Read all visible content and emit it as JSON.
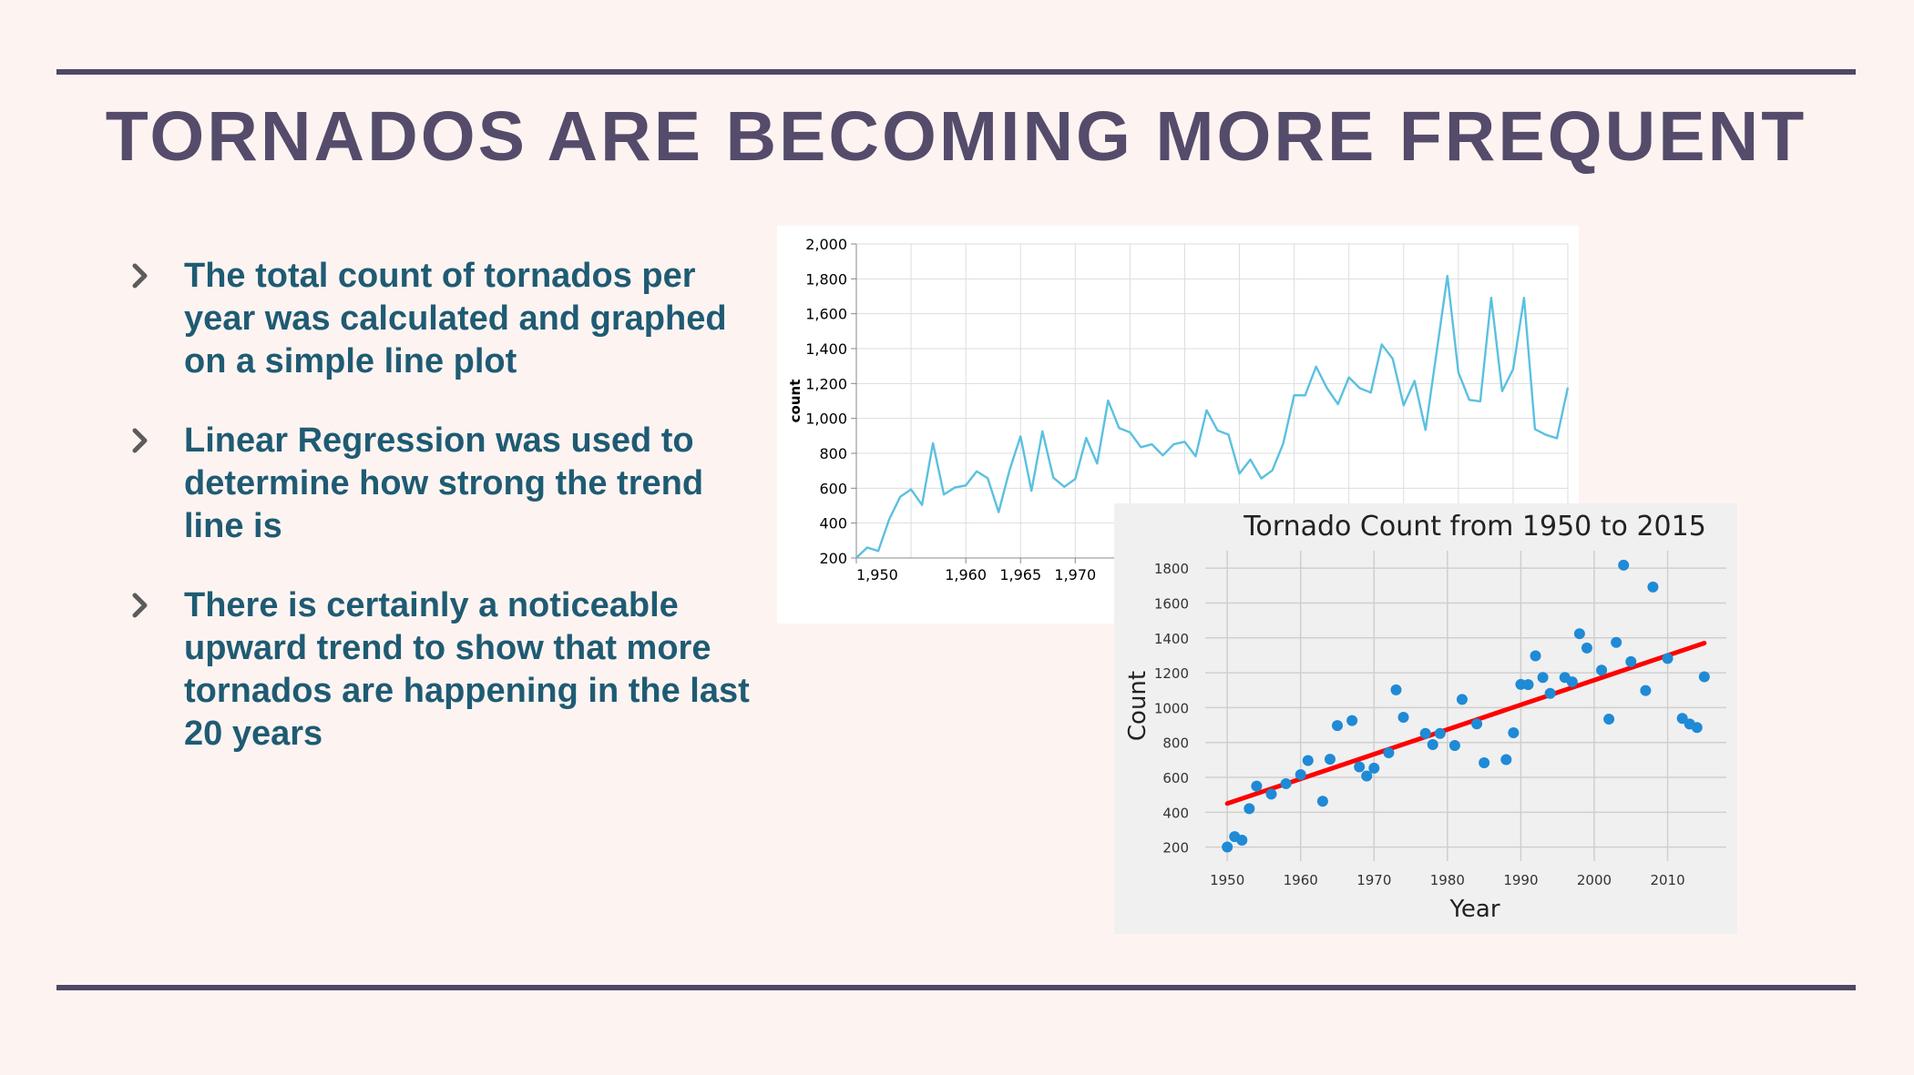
{
  "slide": {
    "title": "TORNADOS ARE BECOMING MORE FREQUENT",
    "accent_color": "#4f4764",
    "text_color": "#1f5b73",
    "bullets": [
      "The total count of tornados per year was calculated and graphed on a simple line plot",
      "Linear Regression was used to determine how strong the trend line is",
      "There is certainly a noticeable upward trend to show that more tornados are happening in the last 20 years"
    ]
  },
  "chart_data": [
    {
      "type": "line",
      "title": "",
      "xlabel": "",
      "ylabel": "count",
      "xlim": [
        1950,
        2015
      ],
      "ylim": [
        200,
        2000
      ],
      "yticks": [
        200,
        400,
        600,
        800,
        1000,
        1200,
        1400,
        1600,
        1800,
        2000
      ],
      "ytick_labels": [
        "200",
        "400",
        "600",
        "800",
        "1,000",
        "1,200",
        "1,400",
        "1,600",
        "1,800",
        "2,000"
      ],
      "xticks": [
        1950,
        1960,
        1965,
        1970
      ],
      "xtick_labels": [
        "1,950",
        "1,960",
        "1,965",
        "1,970"
      ],
      "color": "#5bc0e0",
      "grid": true,
      "series": [
        {
          "x": [
            1950,
            1951,
            1952,
            1953,
            1954,
            1955,
            1956,
            1957,
            1958,
            1959,
            1960,
            1961,
            1962,
            1963,
            1964,
            1965,
            1966,
            1967,
            1968,
            1969,
            1970,
            1971,
            1972,
            1973,
            1974,
            1975,
            1976,
            1977,
            1978,
            1979,
            1980,
            1981,
            1982,
            1983,
            1984,
            1985,
            1986,
            1987,
            1988,
            1989,
            1990,
            1991,
            1992,
            1993,
            1994,
            1995,
            1996,
            1997,
            1998,
            1999,
            2000,
            2001,
            2002,
            2003,
            2004,
            2005,
            2006,
            2007,
            2008,
            2009,
            2010,
            2011,
            2012,
            2013,
            2014,
            2015
          ],
          "values": [
            201,
            260,
            240,
            421,
            550,
            593,
            504,
            858,
            564,
            604,
            616,
            697,
            657,
            463,
            704,
            897,
            585,
            926,
            660,
            608,
            653,
            888,
            741,
            1102,
            945,
            920,
            835,
            852,
            788,
            852,
            866,
            783,
            1047,
            931,
            907,
            684,
            764,
            656,
            702,
            856,
            1133,
            1132,
            1297,
            1173,
            1082,
            1235,
            1173,
            1148,
            1424,
            1342,
            1075,
            1215,
            934,
            1374,
            1817,
            1264,
            1106,
            1098,
            1692,
            1156,
            1282,
            1691,
            938,
            906,
            886,
            1177
          ]
        }
      ]
    },
    {
      "type": "scatter",
      "title": "Tornado Count from 1950 to 2015",
      "xlabel": "Year",
      "ylabel": "Count",
      "xlim": [
        1947,
        2018
      ],
      "ylim": [
        120,
        1900
      ],
      "xticks": [
        1950,
        1960,
        1970,
        1980,
        1990,
        2000,
        2010
      ],
      "yticks": [
        200,
        400,
        600,
        800,
        1000,
        1200,
        1400,
        1600,
        1800
      ],
      "point_color": "#1f8ad6",
      "trend_color": "#ff0000",
      "grid": true,
      "points": {
        "x": [
          1950,
          1951,
          1952,
          1953,
          1954,
          1956,
          1958,
          1960,
          1961,
          1963,
          1964,
          1965,
          1967,
          1968,
          1969,
          1970,
          1972,
          1973,
          1974,
          1977,
          1978,
          1979,
          1981,
          1982,
          1984,
          1985,
          1988,
          1989,
          1990,
          1991,
          1992,
          1993,
          1994,
          1996,
          1997,
          1998,
          1999,
          2001,
          2002,
          2003,
          2004,
          2005,
          2007,
          2008,
          2010,
          2012,
          2013,
          2014,
          2015
        ],
        "y": [
          201,
          260,
          240,
          421,
          550,
          504,
          564,
          616,
          697,
          463,
          704,
          897,
          926,
          660,
          608,
          653,
          741,
          1102,
          945,
          852,
          788,
          852,
          783,
          1047,
          907,
          684,
          702,
          856,
          1133,
          1132,
          1297,
          1173,
          1082,
          1173,
          1148,
          1424,
          1342,
          1215,
          934,
          1374,
          1817,
          1264,
          1098,
          1692,
          1282,
          938,
          906,
          886,
          1177
        ]
      },
      "trend_line": {
        "x": [
          1950,
          2015
        ],
        "y": [
          450,
          1370
        ]
      }
    }
  ]
}
